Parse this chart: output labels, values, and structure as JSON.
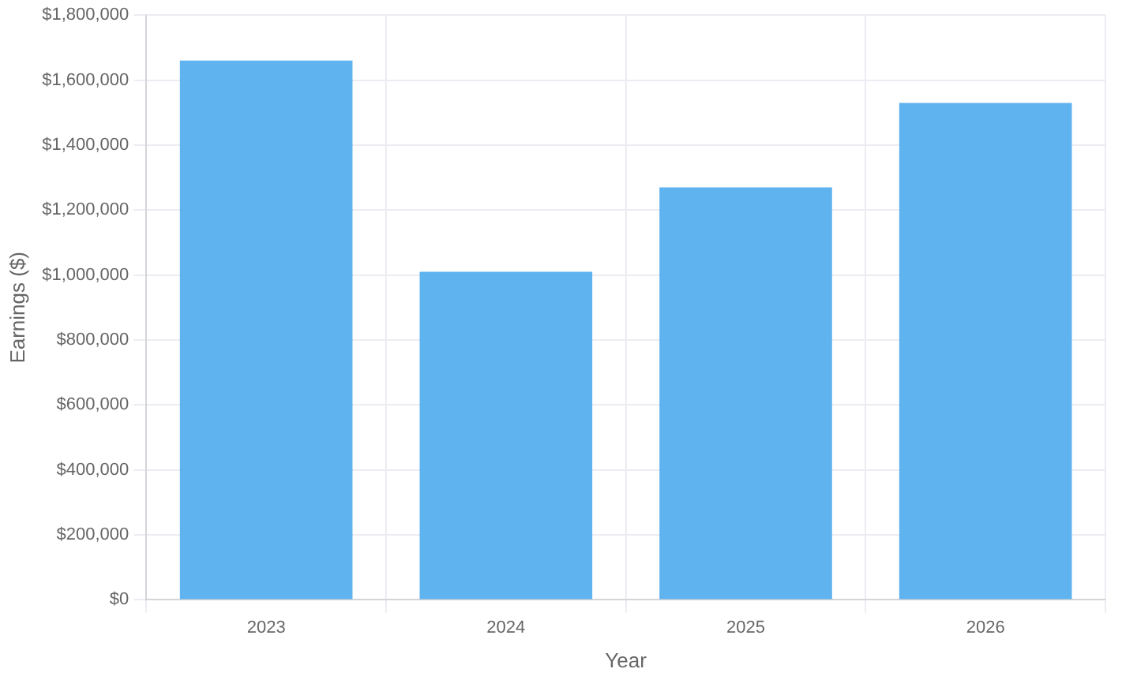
{
  "chart_data": {
    "type": "bar",
    "xlabel": "Year",
    "ylabel": "Earnings ($)",
    "categories": [
      "2023",
      "2024",
      "2025",
      "2026"
    ],
    "values": [
      1660000,
      1010000,
      1270000,
      1530000
    ],
    "color": "#5fb3ee",
    "ylim": [
      0,
      1800000
    ],
    "yticks": [
      {
        "value": 0,
        "label": "$0"
      },
      {
        "value": 200000,
        "label": "$200,000"
      },
      {
        "value": 400000,
        "label": "$400,000"
      },
      {
        "value": 600000,
        "label": "$600,000"
      },
      {
        "value": 800000,
        "label": "$800,000"
      },
      {
        "value": 1000000,
        "label": "$1,000,000"
      },
      {
        "value": 1200000,
        "label": "$1,200,000"
      },
      {
        "value": 1400000,
        "label": "$1,400,000"
      },
      {
        "value": 1600000,
        "label": "$1,600,000"
      },
      {
        "value": 1800000,
        "label": "$1,800,000"
      }
    ],
    "grid": true
  }
}
